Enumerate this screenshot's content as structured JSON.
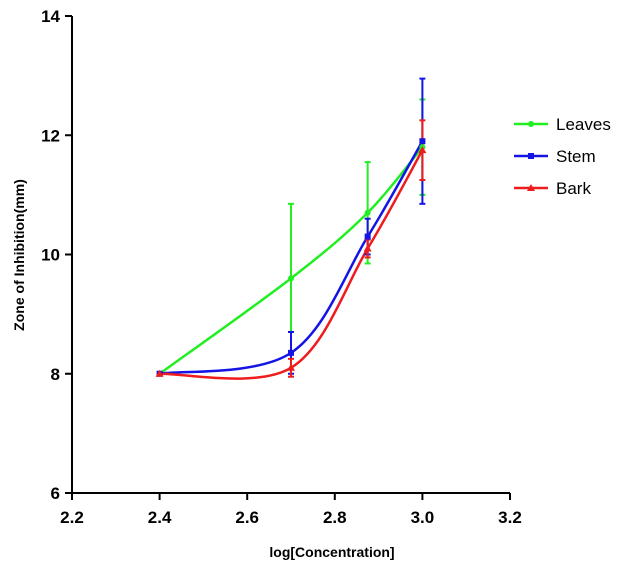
{
  "chart_data": {
    "type": "line",
    "xlabel": "log[Concentration]",
    "ylabel": "Zone of Inhibition(mm)",
    "xlim": [
      2.2,
      3.2
    ],
    "ylim": [
      6,
      14
    ],
    "xticks": [
      "2.2",
      "2.4",
      "2.6",
      "2.8",
      "3.0",
      "3.2"
    ],
    "yticks": [
      "6",
      "8",
      "10",
      "12",
      "14"
    ],
    "grid": false,
    "legend_position": "right",
    "series": [
      {
        "name": "Leaves",
        "color": "#22ee22",
        "marker": "circle",
        "x": [
          2.4,
          2.7,
          2.875,
          3.0
        ],
        "y": [
          8.0,
          9.6,
          10.7,
          11.8
        ],
        "err": [
          0,
          1.25,
          0.85,
          0.8
        ]
      },
      {
        "name": "Stem",
        "color": "#1414e6",
        "marker": "square",
        "x": [
          2.4,
          2.7,
          2.875,
          3.0
        ],
        "y": [
          8.0,
          8.35,
          10.3,
          11.9
        ],
        "err": [
          0,
          0.35,
          0.3,
          1.05
        ]
      },
      {
        "name": "Bark",
        "color": "#ee1c1c",
        "marker": "triangle",
        "x": [
          2.4,
          2.7,
          2.875,
          3.0
        ],
        "y": [
          8.0,
          8.1,
          10.1,
          11.75
        ],
        "err": [
          0,
          0.15,
          0.15,
          0.5
        ]
      }
    ]
  }
}
